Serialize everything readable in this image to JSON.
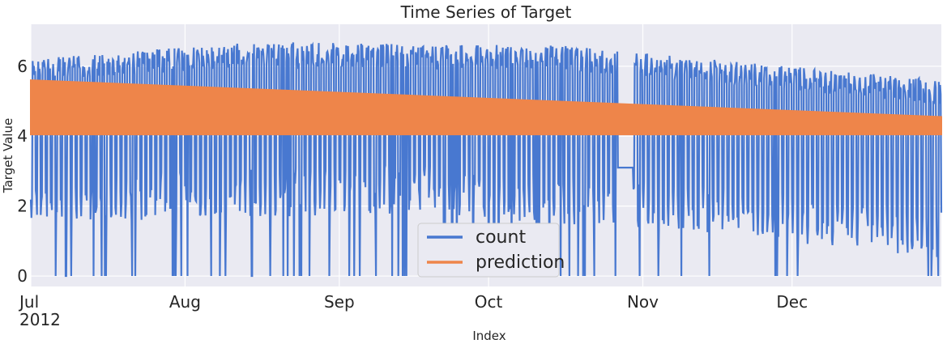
{
  "chart_data": {
    "type": "line",
    "title": "Time Series of Target",
    "xlabel": "Index",
    "ylabel": "Target Value",
    "xlim": [
      "2012-07-01",
      "2012-12-31"
    ],
    "ylim": [
      -0.3,
      7.2
    ],
    "x_ticks": [
      {
        "date": "2012-07-01",
        "label": "Jul",
        "sublabel": "2012"
      },
      {
        "date": "2012-08-01",
        "label": "Aug"
      },
      {
        "date": "2012-09-01",
        "label": "Sep"
      },
      {
        "date": "2012-10-01",
        "label": "Oct"
      },
      {
        "date": "2012-11-01",
        "label": "Nov"
      },
      {
        "date": "2012-12-01",
        "label": "Dec"
      }
    ],
    "y_ticks": [
      0,
      2,
      4,
      6
    ],
    "grid": true,
    "legend_position": "lower-center",
    "series": [
      {
        "name": "count",
        "color": "#4878d0",
        "description_values": "hourly-scale oscillating count, daily peaks around 5.8-6.8, nightly troughs around 0.7-2.5",
        "daily_peak_envelope": [
          [
            "2012-07-01",
            6.2
          ],
          [
            "2012-08-15",
            6.7
          ],
          [
            "2012-10-15",
            6.6
          ],
          [
            "2012-12-31",
            5.6
          ]
        ],
        "daily_trough_envelope": [
          [
            "2012-07-01",
            1.5
          ],
          [
            "2012-09-15",
            1.8
          ],
          [
            "2012-11-15",
            1.2
          ],
          [
            "2012-12-31",
            0.5
          ]
        ],
        "flat_gap": {
          "start": "2012-10-27",
          "end": "2012-10-30",
          "value": 3.1
        }
      },
      {
        "name": "prediction",
        "color": "#ee854a",
        "upper_envelope": [
          [
            "2012-07-01",
            5.6
          ],
          [
            "2012-12-31",
            4.55
          ]
        ],
        "lower_envelope": [
          [
            "2012-07-01",
            4.05
          ],
          [
            "2012-12-31",
            4.05
          ]
        ]
      }
    ]
  }
}
